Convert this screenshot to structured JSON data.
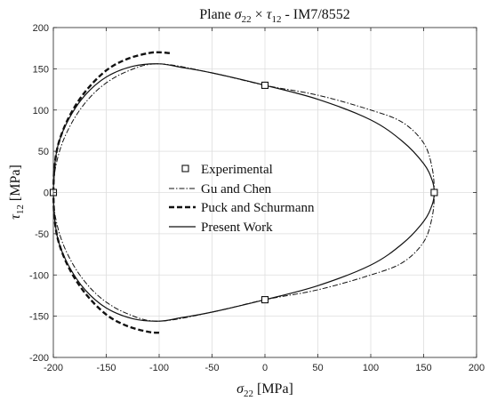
{
  "chart_data": {
    "type": "line",
    "title_pre": "Plane ",
    "title_s_base": "σ",
    "title_s_sub": "22",
    "title_times": " × ",
    "title_t_base": "τ",
    "title_t_sub": "12",
    "title_post": " - IM7/8552",
    "xlabel_base": "σ",
    "xlabel_sub": "22",
    "xlabel_unit": " [MPa]",
    "ylabel_base": "τ",
    "ylabel_sub": "12",
    "ylabel_unit": " [MPa]",
    "xlim": [
      -200,
      200
    ],
    "ylim": [
      -200,
      200
    ],
    "xticks": [
      "-200",
      "-150",
      "-100",
      "-50",
      "0",
      "50",
      "100",
      "150",
      "200"
    ],
    "yticks": [
      "-200",
      "-150",
      "-100",
      "-50",
      "0",
      "50",
      "100",
      "150",
      "200"
    ],
    "grid": true,
    "legend_position": "center",
    "series": [
      {
        "name": "Experimental",
        "style": "marker-square",
        "points": [
          [
            -200,
            0
          ],
          [
            0,
            130
          ],
          [
            160,
            0
          ],
          [
            0,
            -130
          ]
        ]
      },
      {
        "name": "Gu and Chen",
        "style": "dashdot",
        "points": [
          [
            -200,
            0
          ],
          [
            -198,
            30
          ],
          [
            -190,
            65
          ],
          [
            -175,
            100
          ],
          [
            -155,
            128
          ],
          [
            -130,
            147
          ],
          [
            -100,
            156
          ],
          [
            -50,
            145
          ],
          [
            0,
            130
          ],
          [
            50,
            118
          ],
          [
            100,
            100
          ],
          [
            130,
            85
          ],
          [
            150,
            60
          ],
          [
            158,
            30
          ],
          [
            160,
            0
          ],
          [
            158,
            -30
          ],
          [
            150,
            -60
          ],
          [
            130,
            -85
          ],
          [
            100,
            -100
          ],
          [
            50,
            -118
          ],
          [
            0,
            -130
          ],
          [
            -50,
            -145
          ],
          [
            -100,
            -156
          ],
          [
            -130,
            -147
          ],
          [
            -155,
            -128
          ],
          [
            -175,
            -100
          ],
          [
            -190,
            -65
          ],
          [
            -198,
            -30
          ],
          [
            -200,
            0
          ]
        ]
      },
      {
        "name": "Puck and Schurmann",
        "style": "dashed",
        "points": [
          [
            -200,
            0
          ],
          [
            -199,
            30
          ],
          [
            -195,
            60
          ],
          [
            -185,
            92
          ],
          [
            -170,
            122
          ],
          [
            -150,
            148
          ],
          [
            -130,
            162
          ],
          [
            -110,
            169
          ],
          [
            -100,
            170
          ],
          [
            -90,
            169
          ],
          [
            -100,
            -170
          ],
          [
            -110,
            -169
          ],
          [
            -130,
            -162
          ],
          [
            -150,
            -148
          ],
          [
            -170,
            -122
          ],
          [
            -185,
            -92
          ],
          [
            -195,
            -60
          ],
          [
            -199,
            -30
          ],
          [
            -200,
            0
          ]
        ]
      },
      {
        "name": "Present Work",
        "style": "solid",
        "points": [
          [
            -200,
            0
          ],
          [
            -199,
            30
          ],
          [
            -195,
            60
          ],
          [
            -185,
            90
          ],
          [
            -170,
            118
          ],
          [
            -150,
            140
          ],
          [
            -125,
            153
          ],
          [
            -100,
            156
          ],
          [
            -80,
            152
          ],
          [
            -50,
            145
          ],
          [
            0,
            130
          ],
          [
            50,
            113
          ],
          [
            100,
            88
          ],
          [
            130,
            62
          ],
          [
            150,
            35
          ],
          [
            158,
            15
          ],
          [
            160,
            0
          ],
          [
            158,
            -15
          ],
          [
            150,
            -35
          ],
          [
            130,
            -62
          ],
          [
            100,
            -88
          ],
          [
            50,
            -113
          ],
          [
            0,
            -130
          ],
          [
            -50,
            -145
          ],
          [
            -80,
            -152
          ],
          [
            -100,
            -156
          ],
          [
            -125,
            -153
          ],
          [
            -150,
            -140
          ],
          [
            -170,
            -118
          ],
          [
            -185,
            -90
          ],
          [
            -195,
            -60
          ],
          [
            -199,
            -30
          ],
          [
            -200,
            0
          ]
        ]
      }
    ]
  }
}
